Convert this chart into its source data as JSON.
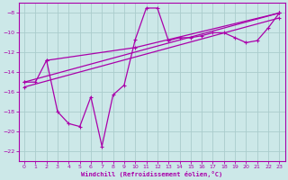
{
  "xlabel": "Windchill (Refroidissement éolien,°C)",
  "background_color": "#cce8e8",
  "grid_color": "#aacccc",
  "line_color": "#aa00aa",
  "xlim": [
    -0.5,
    23.5
  ],
  "ylim": [
    -23,
    -7
  ],
  "yticks": [
    -22,
    -20,
    -18,
    -16,
    -14,
    -12,
    -10,
    -8
  ],
  "xticks": [
    0,
    1,
    2,
    3,
    4,
    5,
    6,
    7,
    8,
    9,
    10,
    11,
    12,
    13,
    14,
    15,
    16,
    17,
    18,
    19,
    20,
    21,
    22,
    23
  ],
  "line1_x": [
    0,
    1,
    2,
    3,
    4,
    5,
    6,
    7,
    8,
    9,
    10,
    11,
    12,
    13,
    14,
    15,
    16,
    17,
    18,
    19,
    20,
    21,
    22,
    23
  ],
  "line1_y": [
    -15.0,
    -15.0,
    -12.8,
    -18.0,
    -19.2,
    -19.5,
    -16.5,
    -21.5,
    -16.3,
    -15.3,
    -10.7,
    -7.5,
    -7.5,
    -10.8,
    -10.5,
    -10.5,
    -10.3,
    -10.0,
    -10.0,
    -10.5,
    -11.0,
    -10.8,
    -9.5,
    -8.0
  ],
  "line2_x": [
    2,
    10,
    23
  ],
  "line2_y": [
    -12.8,
    -11.5,
    -8.0
  ],
  "line3_x": [
    0,
    23
  ],
  "line3_y": [
    -15.0,
    -8.0
  ],
  "line4_x": [
    0,
    23
  ],
  "line4_y": [
    -15.5,
    -8.5
  ]
}
